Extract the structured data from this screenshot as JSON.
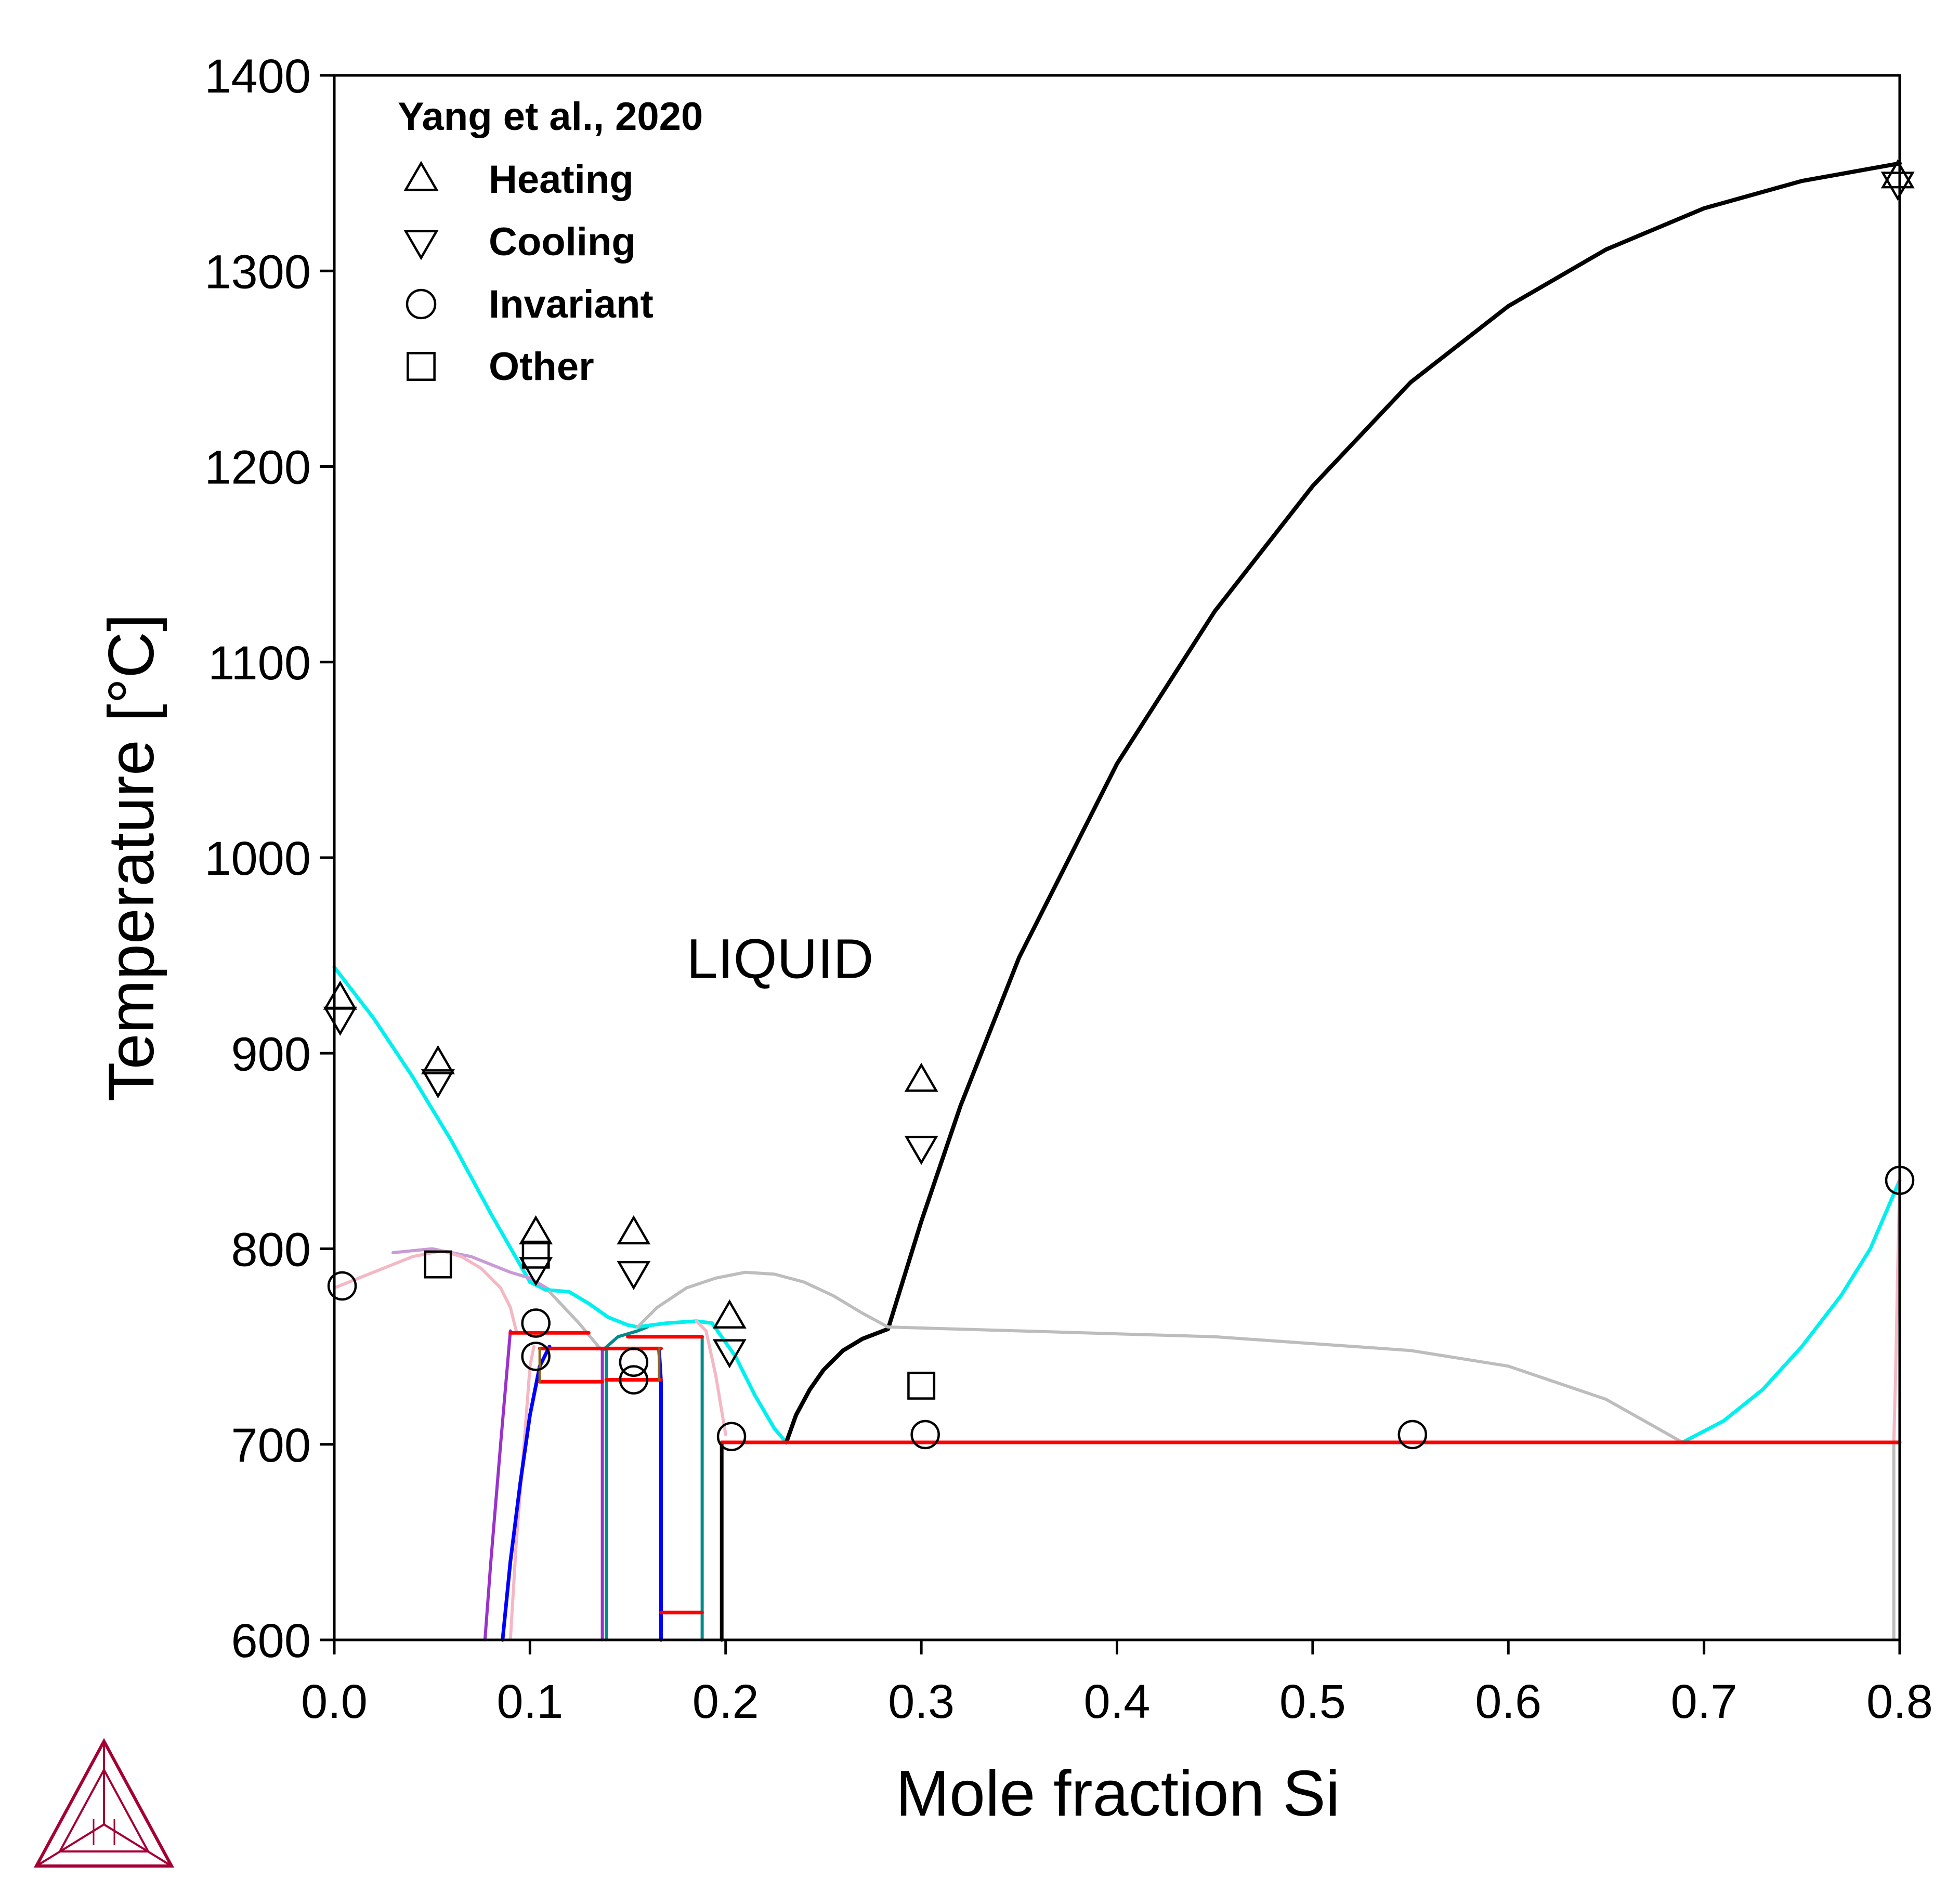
{
  "chart_data": {
    "type": "line",
    "title": "",
    "xlabel": "Mole fraction Si",
    "ylabel": "Temperature [°C]",
    "xlim": [
      0.0,
      0.8
    ],
    "ylim": [
      600,
      1400
    ],
    "x_ticks": [
      0.0,
      0.1,
      0.2,
      0.3,
      0.4,
      0.5,
      0.6,
      0.7,
      0.8
    ],
    "x_tick_labels": [
      "0.0",
      "0.1",
      "0.2",
      "0.3",
      "0.4",
      "0.5",
      "0.6",
      "0.7",
      "0.8"
    ],
    "y_ticks": [
      600,
      700,
      800,
      900,
      1000,
      1100,
      1200,
      1300,
      1400
    ],
    "y_tick_labels": [
      "600",
      "700",
      "800",
      "900",
      "1000",
      "1100",
      "1200",
      "1300",
      "1400"
    ],
    "grid": false,
    "legend_placement": "top-left",
    "legend": {
      "title": "Yang et al., 2020",
      "entries": [
        {
          "marker": "triangle-up",
          "label": "Heating"
        },
        {
          "marker": "triangle-down",
          "label": "Cooling"
        },
        {
          "marker": "circle",
          "label": "Invariant"
        },
        {
          "marker": "square",
          "label": "Other"
        }
      ]
    },
    "annotations": [
      {
        "text": "LIQUID",
        "x": 0.18,
        "y": 948
      }
    ],
    "colors": {
      "cyan": "#00f0f0",
      "black": "#000000",
      "gray": "#bdbdbd",
      "pink": "#f4b8c4",
      "red": "#ff0000",
      "blue": "#0000ff",
      "purple": "#9932cc",
      "teal": "#008b8b",
      "olive": "#8b6914",
      "mauve": "#c89bd6",
      "logo": "#a50034"
    },
    "series": [
      {
        "color": "cyan",
        "width": 7,
        "points": [
          [
            0.0,
            944
          ],
          [
            0.02,
            918
          ],
          [
            0.04,
            888
          ],
          [
            0.06,
            855
          ],
          [
            0.08,
            818
          ],
          [
            0.1,
            783
          ],
          [
            0.108,
            779
          ]
        ]
      },
      {
        "color": "mauve",
        "width": 6,
        "points": [
          [
            0.03,
            798
          ],
          [
            0.05,
            800
          ],
          [
            0.07,
            796
          ],
          [
            0.09,
            788
          ],
          [
            0.1,
            785
          ],
          [
            0.11,
            779
          ]
        ]
      },
      {
        "color": "cyan",
        "width": 7,
        "points": [
          [
            0.108,
            779
          ],
          [
            0.12,
            778
          ],
          [
            0.13,
            772
          ],
          [
            0.14,
            765
          ],
          [
            0.15,
            761
          ],
          [
            0.155,
            760
          ]
        ]
      },
      {
        "color": "gray",
        "width": 6,
        "points": [
          [
            0.11,
            778
          ],
          [
            0.125,
            762
          ],
          [
            0.135,
            750
          ],
          [
            0.137,
            748
          ]
        ]
      },
      {
        "color": "teal",
        "width": 6,
        "points": [
          [
            0.137,
            748
          ],
          [
            0.145,
            755
          ],
          [
            0.155,
            758
          ],
          [
            0.16,
            760
          ]
        ]
      },
      {
        "color": "cyan",
        "width": 7,
        "points": [
          [
            0.155,
            760
          ],
          [
            0.17,
            762
          ],
          [
            0.185,
            763
          ],
          [
            0.193,
            762
          ]
        ]
      },
      {
        "color": "cyan",
        "width": 7,
        "points": [
          [
            0.193,
            762
          ],
          [
            0.205,
            745
          ],
          [
            0.215,
            725
          ],
          [
            0.225,
            708
          ],
          [
            0.231,
            701
          ]
        ]
      },
      {
        "color": "black",
        "width": 8,
        "points": [
          [
            0.231,
            701
          ],
          [
            0.236,
            715
          ],
          [
            0.243,
            728
          ],
          [
            0.25,
            738
          ],
          [
            0.26,
            748
          ],
          [
            0.27,
            754
          ],
          [
            0.283,
            759
          ]
        ]
      },
      {
        "color": "black",
        "width": 8,
        "points": [
          [
            0.283,
            759
          ],
          [
            0.3,
            814
          ],
          [
            0.32,
            873
          ],
          [
            0.35,
            949
          ],
          [
            0.4,
            1048
          ],
          [
            0.45,
            1126
          ],
          [
            0.5,
            1190
          ],
          [
            0.55,
            1243
          ],
          [
            0.6,
            1282
          ],
          [
            0.65,
            1311
          ],
          [
            0.7,
            1332
          ],
          [
            0.75,
            1346
          ],
          [
            0.8,
            1355
          ]
        ]
      },
      {
        "color": "gray",
        "width": 6,
        "points": [
          [
            0.155,
            760
          ],
          [
            0.165,
            770
          ],
          [
            0.18,
            780
          ],
          [
            0.195,
            785
          ],
          [
            0.21,
            788
          ],
          [
            0.225,
            787
          ],
          [
            0.24,
            783
          ],
          [
            0.255,
            776
          ],
          [
            0.27,
            767
          ],
          [
            0.283,
            760
          ]
        ]
      },
      {
        "color": "gray",
        "width": 6,
        "points": [
          [
            0.283,
            760
          ],
          [
            0.35,
            758
          ],
          [
            0.45,
            755
          ],
          [
            0.55,
            748
          ],
          [
            0.6,
            740
          ],
          [
            0.65,
            723
          ],
          [
            0.689,
            701
          ]
        ]
      },
      {
        "color": "cyan",
        "width": 7,
        "points": [
          [
            0.689,
            701
          ],
          [
            0.71,
            712
          ],
          [
            0.73,
            728
          ],
          [
            0.75,
            750
          ],
          [
            0.77,
            776
          ],
          [
            0.785,
            800
          ],
          [
            0.8,
            835
          ]
        ]
      },
      {
        "color": "pink",
        "width": 6,
        "points": [
          [
            0.0,
            780
          ],
          [
            0.02,
            788
          ],
          [
            0.04,
            796
          ],
          [
            0.055,
            799
          ],
          [
            0.065,
            796
          ],
          [
            0.075,
            790
          ],
          [
            0.085,
            780
          ],
          [
            0.09,
            770
          ],
          [
            0.093,
            758
          ]
        ]
      },
      {
        "color": "pink",
        "width": 6,
        "points": [
          [
            0.185,
            763
          ],
          [
            0.19,
            758
          ],
          [
            0.195,
            735
          ],
          [
            0.2,
            705
          ]
        ]
      },
      {
        "color": "pink",
        "width": 6,
        "points": [
          [
            0.8,
            835
          ],
          [
            0.799,
            790
          ],
          [
            0.798,
            740
          ],
          [
            0.797,
            701
          ]
        ]
      },
      {
        "color": "purple",
        "width": 6,
        "points": [
          [
            0.077,
            600
          ],
          [
            0.08,
            640
          ],
          [
            0.085,
            700
          ],
          [
            0.09,
            758
          ]
        ]
      },
      {
        "color": "pink",
        "width": 6,
        "points": [
          [
            0.09,
            600
          ],
          [
            0.093,
            650
          ],
          [
            0.097,
            700
          ],
          [
            0.1,
            740
          ],
          [
            0.102,
            750
          ]
        ]
      },
      {
        "color": "blue",
        "width": 7,
        "points": [
          [
            0.086,
            600
          ],
          [
            0.09,
            640
          ],
          [
            0.095,
            680
          ],
          [
            0.1,
            715
          ],
          [
            0.105,
            740
          ],
          [
            0.11,
            750
          ]
        ]
      },
      {
        "color": "purple",
        "width": 6,
        "points": [
          [
            0.137,
            600
          ],
          [
            0.137,
            748
          ]
        ]
      },
      {
        "color": "teal",
        "width": 6,
        "points": [
          [
            0.139,
            600
          ],
          [
            0.139,
            748
          ]
        ]
      },
      {
        "color": "blue",
        "width": 7,
        "points": [
          [
            0.167,
            600
          ],
          [
            0.167,
            732
          ],
          [
            0.166,
            748
          ]
        ]
      },
      {
        "color": "teal",
        "width": 6,
        "points": [
          [
            0.188,
            600
          ],
          [
            0.188,
            755
          ]
        ]
      },
      {
        "color": "black",
        "width": 7,
        "points": [
          [
            0.198,
            600
          ],
          [
            0.198,
            701
          ]
        ]
      },
      {
        "color": "gray",
        "width": 6,
        "points": [
          [
            0.797,
            701
          ],
          [
            0.797,
            600
          ]
        ]
      },
      {
        "color": "red",
        "width": 7,
        "points": [
          [
            0.09,
            757
          ],
          [
            0.13,
            757
          ]
        ]
      },
      {
        "color": "red",
        "width": 7,
        "points": [
          [
            0.105,
            749
          ],
          [
            0.167,
            749
          ]
        ]
      },
      {
        "color": "red",
        "width": 7,
        "points": [
          [
            0.105,
            732
          ],
          [
            0.137,
            732
          ]
        ]
      },
      {
        "color": "red",
        "width": 7,
        "points": [
          [
            0.139,
            733
          ],
          [
            0.167,
            733
          ]
        ]
      },
      {
        "color": "red",
        "width": 7,
        "points": [
          [
            0.15,
            755
          ],
          [
            0.188,
            755
          ]
        ]
      },
      {
        "color": "olive",
        "width": 5,
        "points": [
          [
            0.105,
            732
          ],
          [
            0.105,
            749
          ]
        ]
      },
      {
        "color": "olive",
        "width": 5,
        "points": [
          [
            0.166,
            733
          ],
          [
            0.166,
            749
          ]
        ]
      },
      {
        "color": "red",
        "width": 7,
        "points": [
          [
            0.167,
            614
          ],
          [
            0.188,
            614
          ]
        ]
      },
      {
        "color": "red",
        "width": 7,
        "points": [
          [
            0.198,
            701
          ],
          [
            0.8,
            701
          ]
        ]
      }
    ],
    "markers": [
      {
        "marker": "triangle-up",
        "x": 0.003,
        "y": 928
      },
      {
        "marker": "triangle-down",
        "x": 0.003,
        "y": 918
      },
      {
        "marker": "triangle-up",
        "x": 0.053,
        "y": 895
      },
      {
        "marker": "triangle-down",
        "x": 0.053,
        "y": 886
      },
      {
        "marker": "triangle-up",
        "x": 0.103,
        "y": 808
      },
      {
        "marker": "triangle-down",
        "x": 0.103,
        "y": 790
      },
      {
        "marker": "square",
        "x": 0.103,
        "y": 797
      },
      {
        "marker": "triangle-up",
        "x": 0.153,
        "y": 808
      },
      {
        "marker": "triangle-down",
        "x": 0.153,
        "y": 788
      },
      {
        "marker": "triangle-up",
        "x": 0.202,
        "y": 765
      },
      {
        "marker": "triangle-down",
        "x": 0.202,
        "y": 748
      },
      {
        "marker": "triangle-up",
        "x": 0.3,
        "y": 886
      },
      {
        "marker": "triangle-down",
        "x": 0.3,
        "y": 852
      },
      {
        "marker": "square",
        "x": 0.3,
        "y": 730
      },
      {
        "marker": "triangle-up",
        "x": 0.799,
        "y": 1348
      },
      {
        "marker": "triangle-down",
        "x": 0.799,
        "y": 1345
      },
      {
        "marker": "square",
        "x": 0.053,
        "y": 792
      },
      {
        "marker": "circle",
        "x": 0.004,
        "y": 781
      },
      {
        "marker": "circle",
        "x": 0.103,
        "y": 762
      },
      {
        "marker": "circle",
        "x": 0.103,
        "y": 745
      },
      {
        "marker": "circle",
        "x": 0.153,
        "y": 742
      },
      {
        "marker": "circle",
        "x": 0.153,
        "y": 733
      },
      {
        "marker": "circle",
        "x": 0.203,
        "y": 704
      },
      {
        "marker": "circle",
        "x": 0.302,
        "y": 705
      },
      {
        "marker": "circle",
        "x": 0.551,
        "y": 705
      },
      {
        "marker": "circle",
        "x": 0.8,
        "y": 835
      }
    ]
  }
}
